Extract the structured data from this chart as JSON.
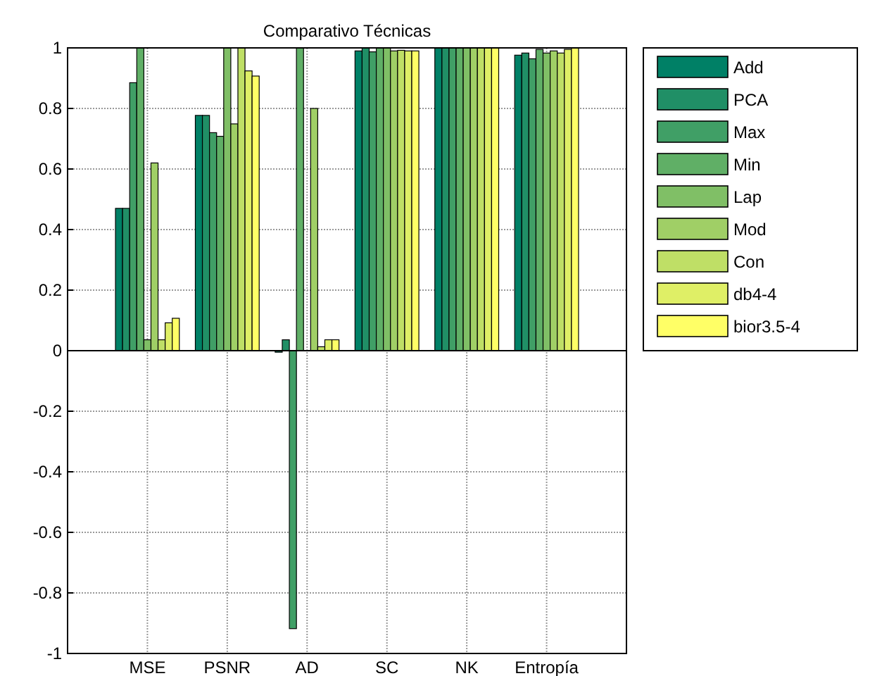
{
  "chart_data": {
    "type": "bar",
    "title": "Comparativo Técnicas",
    "categories": [
      "MSE",
      "PSNR",
      "AD",
      "SC",
      "NK",
      "Entropía"
    ],
    "series": [
      {
        "name": "Add",
        "color": "#008066",
        "values": [
          0.47,
          0.777,
          -0.005,
          0.99,
          1,
          0.976
        ]
      },
      {
        "name": "PCA",
        "color": "#208f66",
        "values": [
          0.47,
          0.777,
          0.036,
          1,
          1,
          0.983
        ]
      },
      {
        "name": "Max",
        "color": "#409f66",
        "values": [
          0.885,
          0.72,
          -0.918,
          0.987,
          1,
          0.964
        ]
      },
      {
        "name": "Min",
        "color": "#60af66",
        "values": [
          1,
          0.708,
          1,
          1,
          1,
          0.995
        ]
      },
      {
        "name": "Lap",
        "color": "#80bf66",
        "values": [
          0.036,
          1,
          0,
          1,
          1,
          0.983
        ]
      },
      {
        "name": "Mod",
        "color": "#a0cf66",
        "values": [
          0.62,
          0.749,
          0.8,
          0.99,
          1,
          0.99
        ]
      },
      {
        "name": "Con",
        "color": "#bfdf66",
        "values": [
          0.036,
          1,
          0.013,
          0.992,
          1,
          0.983
        ]
      },
      {
        "name": "db4-4",
        "color": "#dfef66",
        "values": [
          0.092,
          0.924,
          0.036,
          0.99,
          1,
          0.995
        ]
      },
      {
        "name": "bior3.5-4",
        "color": "#ffff66",
        "values": [
          0.107,
          0.907,
          0.036,
          0.99,
          1,
          1
        ]
      }
    ],
    "ylim": [
      -1,
      1
    ],
    "yticks": [
      -1,
      -0.8,
      -0.6,
      -0.4,
      -0.2,
      0,
      0.2,
      0.4,
      0.6,
      0.8,
      1
    ],
    "grid": true,
    "legend": "top right"
  }
}
